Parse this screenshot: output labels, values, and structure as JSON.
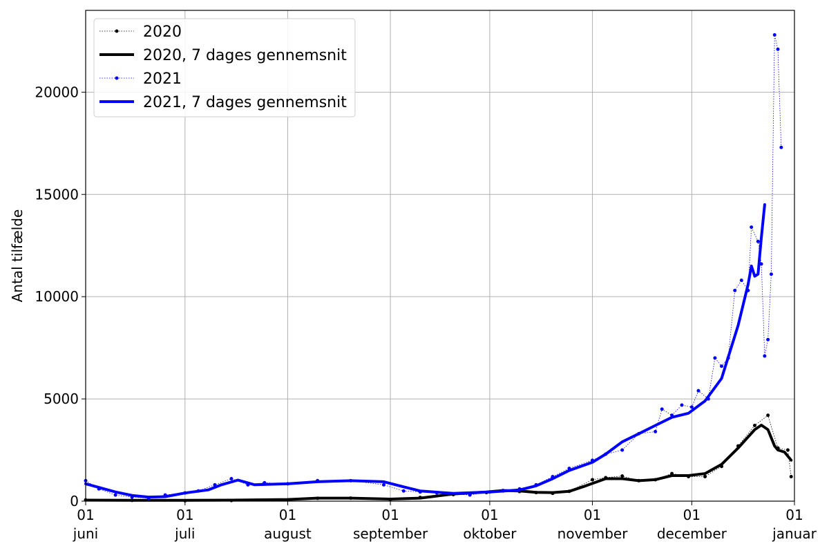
{
  "chart_data": {
    "type": "line",
    "title": "",
    "xlabel": "",
    "ylabel": "Antal tilfælde",
    "xlim": [
      "06-01",
      "01-01"
    ],
    "ylim": [
      0,
      24000
    ],
    "grid": true,
    "legend_position": "top-left",
    "x_ticks": [
      {
        "date": "06-01",
        "day": "01",
        "month": "juni"
      },
      {
        "date": "07-01",
        "day": "01",
        "month": "juli"
      },
      {
        "date": "08-01",
        "day": "01",
        "month": "august"
      },
      {
        "date": "09-01",
        "day": "01",
        "month": "september"
      },
      {
        "date": "10-01",
        "day": "01",
        "month": "oktober"
      },
      {
        "date": "11-01",
        "day": "01",
        "month": "november"
      },
      {
        "date": "12-01",
        "day": "01",
        "month": "december"
      },
      {
        "date": "01-01",
        "day": "01",
        "month": "januar"
      }
    ],
    "y_ticks": [
      "0",
      "5000",
      "10000",
      "15000",
      "20000"
    ],
    "legend": [
      {
        "label": "2020",
        "series": 0
      },
      {
        "label": "2020, 7 dages gennemsnit",
        "series": 1
      },
      {
        "label": "2021",
        "series": 2
      },
      {
        "label": "2021, 7 dages gennemsnit",
        "series": 3
      }
    ],
    "series": [
      {
        "name": "2020",
        "color": "#000000",
        "style": "dotted-markers",
        "points": [
          [
            "06-01",
            60
          ],
          [
            "06-15",
            40
          ],
          [
            "07-01",
            20
          ],
          [
            "07-15",
            30
          ],
          [
            "08-01",
            60
          ],
          [
            "08-10",
            140
          ],
          [
            "08-20",
            150
          ],
          [
            "09-01",
            80
          ],
          [
            "09-10",
            180
          ],
          [
            "09-20",
            320
          ],
          [
            "09-30",
            420
          ],
          [
            "10-05",
            520
          ],
          [
            "10-10",
            470
          ],
          [
            "10-15",
            420
          ],
          [
            "10-20",
            380
          ],
          [
            "10-25",
            480
          ],
          [
            "11-01",
            1050
          ],
          [
            "11-05",
            1150
          ],
          [
            "11-10",
            1230
          ],
          [
            "11-15",
            1000
          ],
          [
            "11-20",
            1050
          ],
          [
            "11-25",
            1350
          ],
          [
            "11-30",
            1200
          ],
          [
            "12-05",
            1200
          ],
          [
            "12-10",
            1700
          ],
          [
            "12-15",
            2700
          ],
          [
            "12-20",
            3700
          ],
          [
            "12-24",
            4200
          ],
          [
            "12-27",
            2600
          ],
          [
            "12-30",
            2500
          ],
          [
            "12-31",
            1200
          ]
        ]
      },
      {
        "name": "2020, 7 dages gennemsnit",
        "color": "#000000",
        "style": "line",
        "points": [
          [
            "06-01",
            50
          ],
          [
            "06-15",
            40
          ],
          [
            "07-01",
            40
          ],
          [
            "07-15",
            50
          ],
          [
            "08-01",
            80
          ],
          [
            "08-10",
            150
          ],
          [
            "08-20",
            150
          ],
          [
            "09-01",
            100
          ],
          [
            "09-10",
            150
          ],
          [
            "09-15",
            250
          ],
          [
            "09-20",
            350
          ],
          [
            "09-30",
            450
          ],
          [
            "10-05",
            520
          ],
          [
            "10-10",
            500
          ],
          [
            "10-15",
            430
          ],
          [
            "10-20",
            420
          ],
          [
            "10-25",
            480
          ],
          [
            "10-30",
            750
          ],
          [
            "11-05",
            1100
          ],
          [
            "11-10",
            1100
          ],
          [
            "11-15",
            1000
          ],
          [
            "11-20",
            1050
          ],
          [
            "11-25",
            1250
          ],
          [
            "11-30",
            1250
          ],
          [
            "12-05",
            1350
          ],
          [
            "12-10",
            1800
          ],
          [
            "12-15",
            2600
          ],
          [
            "12-20",
            3500
          ],
          [
            "12-22",
            3720
          ],
          [
            "12-24",
            3500
          ],
          [
            "12-26",
            2700
          ],
          [
            "12-27",
            2500
          ],
          [
            "12-29",
            2400
          ],
          [
            "12-31",
            2000
          ]
        ]
      },
      {
        "name": "2021",
        "color": "#0000ff",
        "style": "dotted-markers",
        "points": [
          [
            "06-01",
            1000
          ],
          [
            "06-05",
            600
          ],
          [
            "06-10",
            300
          ],
          [
            "06-15",
            200
          ],
          [
            "06-20",
            150
          ],
          [
            "06-25",
            300
          ],
          [
            "07-01",
            400
          ],
          [
            "07-05",
            500
          ],
          [
            "07-10",
            800
          ],
          [
            "07-15",
            1100
          ],
          [
            "07-20",
            800
          ],
          [
            "07-25",
            900
          ],
          [
            "08-01",
            850
          ],
          [
            "08-10",
            1000
          ],
          [
            "08-20",
            1000
          ],
          [
            "08-30",
            800
          ],
          [
            "09-05",
            500
          ],
          [
            "09-10",
            450
          ],
          [
            "09-15",
            400
          ],
          [
            "09-25",
            300
          ],
          [
            "10-01",
            450
          ],
          [
            "10-05",
            500
          ],
          [
            "10-10",
            600
          ],
          [
            "10-15",
            800
          ],
          [
            "10-20",
            1200
          ],
          [
            "10-25",
            1600
          ],
          [
            "11-01",
            2000
          ],
          [
            "11-05",
            2300
          ],
          [
            "11-10",
            2500
          ],
          [
            "11-15",
            3300
          ],
          [
            "11-20",
            3400
          ],
          [
            "11-22",
            4500
          ],
          [
            "11-25",
            4200
          ],
          [
            "11-28",
            4700
          ],
          [
            "12-01",
            4600
          ],
          [
            "12-03",
            5400
          ],
          [
            "12-06",
            5000
          ],
          [
            "12-08",
            7000
          ],
          [
            "12-10",
            6600
          ],
          [
            "12-12",
            7000
          ],
          [
            "12-14",
            10300
          ],
          [
            "12-16",
            10800
          ],
          [
            "12-18",
            10300
          ],
          [
            "12-19",
            13400
          ],
          [
            "12-21",
            12700
          ],
          [
            "12-22",
            11600
          ],
          [
            "12-23",
            7100
          ],
          [
            "12-24",
            7900
          ],
          [
            "12-25",
            11100
          ],
          [
            "12-26",
            22800
          ],
          [
            "12-27",
            22100
          ],
          [
            "12-28",
            17300
          ]
        ]
      },
      {
        "name": "2021, 7 dages gennemsnit",
        "color": "#0000ff",
        "style": "line",
        "points": [
          [
            "06-01",
            850
          ],
          [
            "06-10",
            450
          ],
          [
            "06-15",
            280
          ],
          [
            "06-20",
            200
          ],
          [
            "06-25",
            220
          ],
          [
            "07-01",
            400
          ],
          [
            "07-08",
            550
          ],
          [
            "07-12",
            800
          ],
          [
            "07-17",
            1030
          ],
          [
            "07-22",
            800
          ],
          [
            "08-01",
            850
          ],
          [
            "08-10",
            950
          ],
          [
            "08-20",
            1000
          ],
          [
            "08-30",
            950
          ],
          [
            "09-05",
            700
          ],
          [
            "09-10",
            500
          ],
          [
            "09-20",
            380
          ],
          [
            "10-01",
            450
          ],
          [
            "10-10",
            550
          ],
          [
            "10-15",
            750
          ],
          [
            "10-20",
            1100
          ],
          [
            "10-25",
            1500
          ],
          [
            "11-01",
            1900
          ],
          [
            "11-05",
            2300
          ],
          [
            "11-10",
            2900
          ],
          [
            "11-15",
            3300
          ],
          [
            "11-20",
            3700
          ],
          [
            "11-25",
            4100
          ],
          [
            "11-30",
            4300
          ],
          [
            "12-05",
            4900
          ],
          [
            "12-10",
            6000
          ],
          [
            "12-15",
            8600
          ],
          [
            "12-18",
            10600
          ],
          [
            "12-19",
            11500
          ],
          [
            "12-20",
            11000
          ],
          [
            "12-21",
            11100
          ],
          [
            "12-22",
            12900
          ],
          [
            "12-23",
            14500
          ]
        ]
      }
    ]
  }
}
